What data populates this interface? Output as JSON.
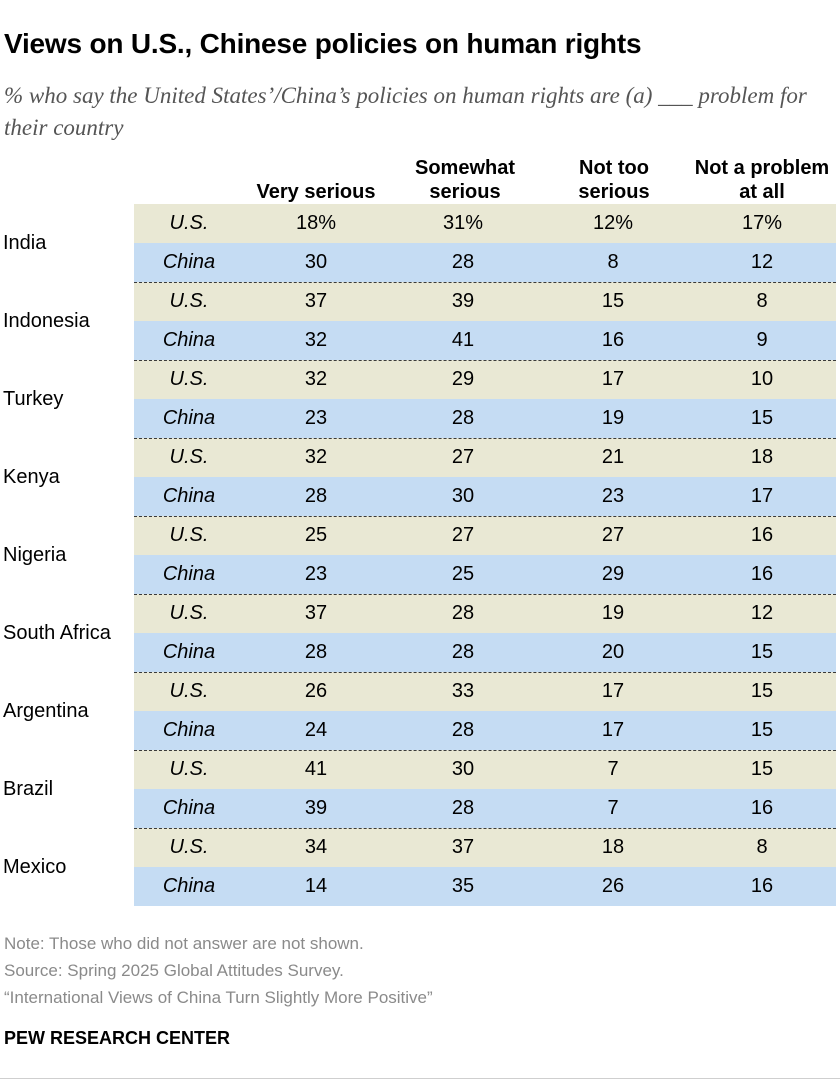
{
  "title": "Views on U.S., Chinese policies on human rights",
  "subtitle": "% who say the United States’/China’s policies on human rights are (a) ___ problem for their country",
  "chart_data": {
    "type": "table",
    "columns": [
      "Very serious",
      "Somewhat serious",
      "Not too serious",
      "Not a problem at all"
    ],
    "column_header_lines": [
      [
        "Very serious"
      ],
      [
        "Somewhat",
        "serious"
      ],
      [
        "Not too",
        "serious"
      ],
      [
        "Not a problem",
        "at all"
      ]
    ],
    "row_labels": [
      "U.S.",
      "China"
    ],
    "countries": [
      {
        "name": "India",
        "us": [
          "18%",
          "31%",
          "12%",
          "17%"
        ],
        "china": [
          "30",
          "28",
          "8",
          "12"
        ]
      },
      {
        "name": "Indonesia",
        "us": [
          "37",
          "39",
          "15",
          "8"
        ],
        "china": [
          "32",
          "41",
          "16",
          "9"
        ]
      },
      {
        "name": "Turkey",
        "us": [
          "32",
          "29",
          "17",
          "10"
        ],
        "china": [
          "23",
          "28",
          "19",
          "15"
        ]
      },
      {
        "name": "Kenya",
        "us": [
          "32",
          "27",
          "21",
          "18"
        ],
        "china": [
          "28",
          "30",
          "23",
          "17"
        ]
      },
      {
        "name": "Nigeria",
        "us": [
          "25",
          "27",
          "27",
          "16"
        ],
        "china": [
          "23",
          "25",
          "29",
          "16"
        ]
      },
      {
        "name": "South Africa",
        "us": [
          "37",
          "28",
          "19",
          "12"
        ],
        "china": [
          "28",
          "28",
          "20",
          "15"
        ]
      },
      {
        "name": "Argentina",
        "us": [
          "26",
          "33",
          "17",
          "15"
        ],
        "china": [
          "24",
          "28",
          "17",
          "15"
        ]
      },
      {
        "name": "Brazil",
        "us": [
          "41",
          "30",
          "7",
          "15"
        ],
        "china": [
          "39",
          "28",
          "7",
          "16"
        ]
      },
      {
        "name": "Mexico",
        "us": [
          "34",
          "37",
          "18",
          "8"
        ],
        "china": [
          "14",
          "35",
          "26",
          "16"
        ]
      }
    ],
    "colors": {
      "us_row": "#e9e8d4",
      "china_row": "#c5dcf3"
    }
  },
  "footer": {
    "note": "Note: Those who did not answer are not shown.",
    "source": "Source: Spring 2025 Global Attitudes Survey.",
    "report": "“International Views of China Turn Slightly More Positive”",
    "brand": "PEW RESEARCH CENTER"
  }
}
